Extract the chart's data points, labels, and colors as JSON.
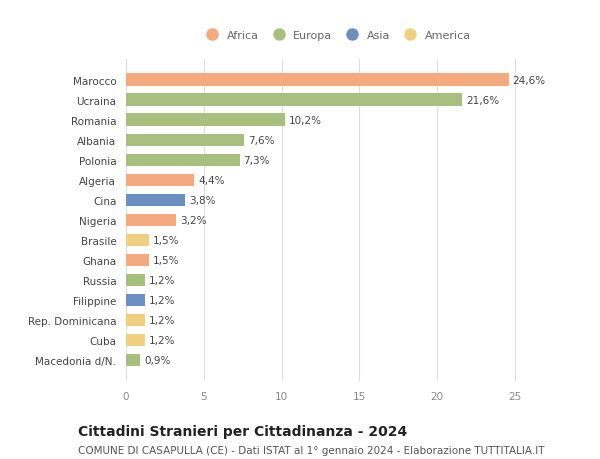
{
  "countries": [
    "Marocco",
    "Ucraina",
    "Romania",
    "Albania",
    "Polonia",
    "Algeria",
    "Cina",
    "Nigeria",
    "Brasile",
    "Ghana",
    "Russia",
    "Filippine",
    "Rep. Dominicana",
    "Cuba",
    "Macedonia d/N."
  ],
  "values": [
    24.6,
    21.6,
    10.2,
    7.6,
    7.3,
    4.4,
    3.8,
    3.2,
    1.5,
    1.5,
    1.2,
    1.2,
    1.2,
    1.2,
    0.9
  ],
  "labels": [
    "24,6%",
    "21,6%",
    "10,2%",
    "7,6%",
    "7,3%",
    "4,4%",
    "3,8%",
    "3,2%",
    "1,5%",
    "1,5%",
    "1,2%",
    "1,2%",
    "1,2%",
    "1,2%",
    "0,9%"
  ],
  "continents": [
    "Africa",
    "Europa",
    "Europa",
    "Europa",
    "Europa",
    "Africa",
    "Asia",
    "Africa",
    "America",
    "Africa",
    "Europa",
    "Asia",
    "America",
    "America",
    "Europa"
  ],
  "continent_colors": {
    "Africa": "#F4A97F",
    "Europa": "#A8C07E",
    "Asia": "#6B8FC0",
    "America": "#F0D080"
  },
  "legend_order": [
    "Africa",
    "Europa",
    "Asia",
    "America"
  ],
  "xlim": [
    0,
    27
  ],
  "xticks": [
    0,
    5,
    10,
    15,
    20,
    25
  ],
  "title": "Cittadini Stranieri per Cittadinanza - 2024",
  "subtitle": "COMUNE DI CASAPULLA (CE) - Dati ISTAT al 1° gennaio 2024 - Elaborazione TUTTITALIA.IT",
  "bar_height": 0.62,
  "background_color": "#ffffff",
  "grid_color": "#dddddd",
  "title_fontsize": 10,
  "subtitle_fontsize": 7.5,
  "tick_fontsize": 7.5,
  "label_fontsize": 7.5,
  "legend_fontsize": 8
}
